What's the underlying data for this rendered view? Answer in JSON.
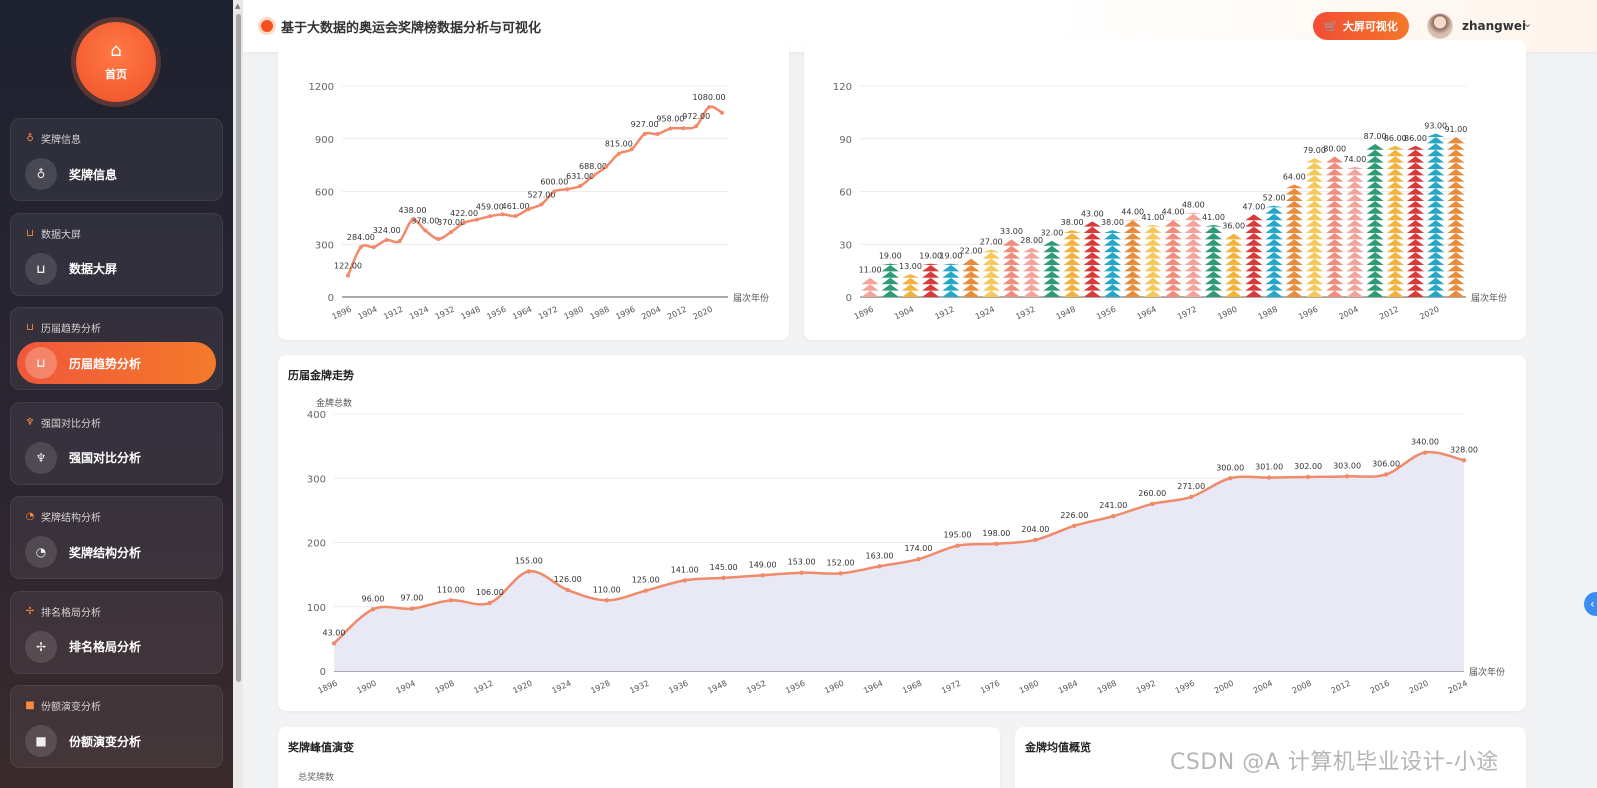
{
  "header": {
    "title": "基于大数据的奥运会奖牌榜数据分析与可视化",
    "big_screen_label": "大屏可视化",
    "username": "zhangwei"
  },
  "sidebar": {
    "home_label": "首页",
    "groups": [
      {
        "title": "奖牌信息",
        "item": "奖牌信息",
        "icon": "medal-icon"
      },
      {
        "title": "数据大屏",
        "item": "数据大屏",
        "icon": "cart-icon"
      },
      {
        "title": "历届趋势分析",
        "item": "历届趋势分析",
        "icon": "cart-icon"
      },
      {
        "title": "强国对比分析",
        "item": "强国对比分析",
        "icon": "trophy-icon"
      },
      {
        "title": "奖牌结构分析",
        "item": "奖牌结构分析",
        "icon": "pie-icon"
      },
      {
        "title": "排名格局分析",
        "item": "排名格局分析",
        "icon": "move-icon"
      },
      {
        "title": "份额演变分析",
        "item": "份额演变分析",
        "icon": "square-icon"
      }
    ]
  },
  "cards": {
    "gold_trend_title": "历届金牌走势",
    "peak_title": "奖牌峰值演变",
    "avg_title": "金牌均值概览",
    "peak_ylabel_partial": "总奖牌数"
  },
  "watermark": "CSDN @A 计算机毕业设计-小途",
  "chart_data": [
    {
      "type": "line",
      "title": "",
      "xlabel": "届次年份",
      "ylabel": "",
      "ylim": [
        0,
        1200
      ],
      "yticks": [
        0,
        300,
        600,
        900,
        1200
      ],
      "x_ticks": [
        "1896",
        "1904",
        "1912",
        "1924",
        "1932",
        "1948",
        "1956",
        "1964",
        "1972",
        "1980",
        "1988",
        "1996",
        "2004",
        "2012",
        "2020"
      ],
      "x": [
        "1896",
        "1900",
        "1904",
        "1908",
        "1912",
        "1920",
        "1924",
        "1928",
        "1932",
        "1936",
        "1948",
        "1952",
        "1956",
        "1960",
        "1964",
        "1968",
        "1972",
        "1976",
        "1980",
        "1984",
        "1988",
        "1992",
        "1996",
        "2000",
        "2004",
        "2008",
        "2012",
        "2016",
        "2020",
        "2024"
      ],
      "values": [
        122,
        284,
        284,
        324,
        318,
        438,
        378,
        330,
        370,
        422,
        440,
        459,
        470,
        461,
        500,
        527,
        600,
        613,
        631,
        688,
        740,
        815,
        840,
        927,
        927,
        958,
        960,
        972,
        1080,
        1048
      ],
      "labels": [
        "122.00",
        "284.00",
        "",
        "324.00",
        "",
        "438.00",
        "378.00",
        "",
        "370.00",
        "422.00",
        "",
        "459.00",
        "",
        "461.00",
        "",
        "527.00",
        "600.00",
        "",
        "631.00",
        "688.00",
        "",
        "815.00",
        "",
        "927.00",
        "",
        "958.00",
        "",
        "972.00",
        "1080.00",
        ""
      ],
      "color": "#f08a6a"
    },
    {
      "type": "bar",
      "title": "",
      "xlabel": "届次年份",
      "ylabel": "",
      "ylim": [
        0,
        120
      ],
      "yticks": [
        0,
        30,
        60,
        90,
        120
      ],
      "x_ticks": [
        "1896",
        "1904",
        "1912",
        "1924",
        "1932",
        "1948",
        "1956",
        "1964",
        "1972",
        "1980",
        "1988",
        "1996",
        "2004",
        "2012",
        "2020"
      ],
      "categories": [
        "1896",
        "1900",
        "1904",
        "1908",
        "1912",
        "1920",
        "1924",
        "1928",
        "1932",
        "1936",
        "1948",
        "1952",
        "1956",
        "1960",
        "1964",
        "1968",
        "1972",
        "1976",
        "1980",
        "1984",
        "1988",
        "1992",
        "1996",
        "2000",
        "2004",
        "2008",
        "2012",
        "2016",
        "2020",
        "2024"
      ],
      "values": [
        11,
        19,
        13,
        19,
        19,
        22,
        27,
        33,
        28,
        32,
        38,
        43,
        38,
        44,
        41,
        44,
        48,
        41,
        36,
        47,
        52,
        64,
        79,
        80,
        74,
        87,
        86,
        86,
        93,
        91
      ],
      "labels": [
        "11.00",
        "19.00",
        "13.00",
        "19.00",
        "19.00",
        "22.00",
        "27.00",
        "33.00",
        "28.00",
        "32.00",
        "38.00",
        "43.00",
        "38.00",
        "44.00",
        "41.00",
        "44.00",
        "48.00",
        "41.00",
        "36.00",
        "47.00",
        "52.00",
        "64.00",
        "79.00",
        "80.00",
        "74.00",
        "87.00",
        "86.00",
        "86.00",
        "93.00",
        "91.00"
      ],
      "palette": [
        "#f4a39a",
        "#2e9b74",
        "#f1b33d",
        "#d83a3a",
        "#25a8c7",
        "#e88b3a",
        "#f5c85c",
        "#f08c7c"
      ]
    },
    {
      "type": "area",
      "title": "历届金牌走势",
      "xlabel": "届次年份",
      "ylabel": "金牌总数",
      "ylim": [
        0,
        400
      ],
      "yticks": [
        0,
        100,
        200,
        300,
        400
      ],
      "x": [
        "1896",
        "1900",
        "1904",
        "1908",
        "1912",
        "1920",
        "1924",
        "1928",
        "1932",
        "1936",
        "1948",
        "1952",
        "1956",
        "1960",
        "1964",
        "1968",
        "1972",
        "1976",
        "1980",
        "1984",
        "1988",
        "1992",
        "1996",
        "2000",
        "2004",
        "2008",
        "2012",
        "2016",
        "2020",
        "2024"
      ],
      "values": [
        43,
        96,
        97,
        110,
        106,
        155,
        126,
        110,
        125,
        141,
        145,
        149,
        153,
        152,
        163,
        174,
        195,
        198,
        204,
        226,
        241,
        260,
        271,
        300,
        301,
        302,
        303,
        306,
        340,
        328
      ],
      "labels": [
        "43.00",
        "96.00",
        "97.00",
        "110.00",
        "106.00",
        "155.00",
        "126.00",
        "110.00",
        "125.00",
        "141.00",
        "145.00",
        "149.00",
        "153.00",
        "152.00",
        "163.00",
        "174.00",
        "195.00",
        "198.00",
        "204.00",
        "226.00",
        "241.00",
        "260.00",
        "271.00",
        "300.00",
        "301.00",
        "302.00",
        "303.00",
        "306.00",
        "340.00",
        "328.00"
      ],
      "color": "#f08a6a",
      "fill": "#e8e9f5"
    }
  ]
}
